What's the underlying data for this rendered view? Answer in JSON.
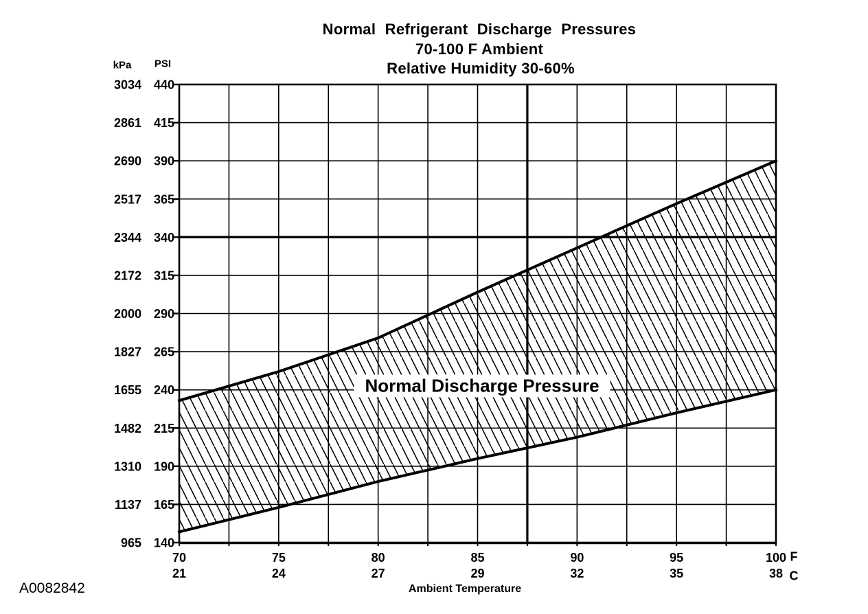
{
  "chart_data": {
    "type": "area",
    "title": "Normal Refrigerant Discharge Pressures",
    "subtitle1": "70-100 F Ambient",
    "subtitle2": "Relative Humidity 30-60%",
    "xlabel": "Ambient Temperature",
    "x_unit_primary": "F",
    "x_unit_secondary": "C",
    "y_unit_primary": "kPa",
    "y_unit_secondary": "PSI",
    "x_ticks_f": [
      70,
      75,
      80,
      85,
      90,
      95,
      100
    ],
    "x_ticks_c": [
      21,
      24,
      27,
      29,
      32,
      35,
      38
    ],
    "y_ticks_psi": [
      440,
      415,
      390,
      365,
      340,
      315,
      290,
      265,
      240,
      215,
      190,
      165,
      140
    ],
    "y_ticks_kpa": [
      3034,
      2861,
      2690,
      2517,
      2344,
      2172,
      2000,
      1827,
      1655,
      1482,
      1310,
      1137,
      965
    ],
    "xlim": [
      70,
      100
    ],
    "ylim": [
      140,
      440
    ],
    "grid": {
      "x_step": 2.5,
      "y_step": 25,
      "thick_x": [
        87.5
      ],
      "thick_y": [
        340
      ],
      "on": true
    },
    "legend_position": "none",
    "band_label": "Normal Discharge Pressure",
    "series": [
      {
        "name": "upper_limit_psi",
        "x": [
          70,
          75,
          80,
          85,
          90,
          95,
          100
        ],
        "values": [
          233,
          252,
          274,
          304,
          333,
          362,
          390
        ]
      },
      {
        "name": "lower_limit_psi",
        "x": [
          70,
          75,
          80,
          85,
          90,
          95,
          100
        ],
        "values": [
          147,
          163,
          180,
          195,
          209,
          225,
          240
        ]
      }
    ],
    "figure_code": "A0082842",
    "colors": {
      "ink": "#000000",
      "background": "#ffffff"
    }
  }
}
